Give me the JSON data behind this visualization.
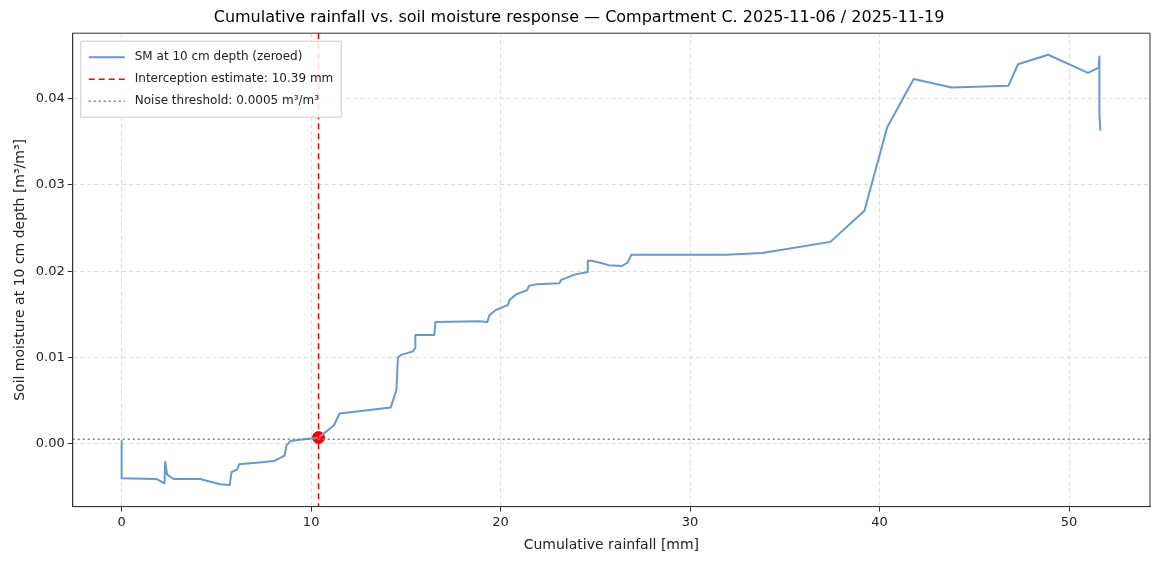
{
  "chart_data": {
    "type": "line",
    "title": "Cumulative rainfall vs. soil moisture response — Compartment C. 2025-11-06 / 2025-11-19",
    "xlabel": "Cumulative rainfall [mm]",
    "ylabel": "Soil moisture at 10 cm depth [m³/m³]",
    "series": [
      {
        "name": "SM at 10 cm depth (zeroed)",
        "color": "#6699cc",
        "x": [
          0,
          0,
          1.86,
          2.26,
          2.3,
          2.4,
          2.74,
          4.14,
          5.2,
          5.7,
          5.8,
          6.1,
          6.2,
          8.05,
          8.6,
          8.7,
          8.9,
          10.39,
          11.2,
          11.5,
          14.2,
          14.5,
          14.58,
          14.75,
          15.37,
          15.5,
          15.5,
          16.5,
          16.56,
          18.87,
          19.3,
          19.4,
          19.75,
          20.4,
          20.45,
          20.8,
          21.4,
          21.5,
          21.9,
          23.1,
          23.2,
          23.9,
          24.6,
          24.6,
          24.8,
          25.2,
          25.7,
          26.4,
          26.7,
          26.9,
          30.1,
          31.9,
          33.8,
          37.4,
          39.2,
          40.4,
          41.8,
          43.8,
          46.8,
          47.3,
          48.9,
          51.0,
          51.56,
          51.6,
          51.6,
          51.65
        ],
        "values": [
          0.0003,
          -0.004,
          -0.0041,
          -0.0046,
          -0.0021,
          -0.0036,
          -0.0041,
          -0.0041,
          -0.0047,
          -0.0048,
          -0.0033,
          -0.003,
          -0.0024,
          -0.002,
          -0.0014,
          -0.0002,
          0.0003,
          0.0007,
          0.0021,
          0.0035,
          0.0042,
          0.0062,
          0.01,
          0.0103,
          0.0107,
          0.0111,
          0.0126,
          0.0126,
          0.0141,
          0.0142,
          0.0141,
          0.0149,
          0.0155,
          0.0161,
          0.0166,
          0.0173,
          0.0178,
          0.0183,
          0.0185,
          0.0186,
          0.019,
          0.0196,
          0.0199,
          0.0212,
          0.0212,
          0.021,
          0.0207,
          0.0206,
          0.021,
          0.0219,
          0.0219,
          0.0219,
          0.0221,
          0.0234,
          0.027,
          0.0367,
          0.0423,
          0.0413,
          0.0415,
          0.044,
          0.0451,
          0.043,
          0.0436,
          0.0449,
          0.0382,
          0.0363
        ]
      },
      {
        "type": "scatter",
        "color": "#ff0000",
        "x": [
          10.39
        ],
        "values": [
          0.0007
        ]
      }
    ],
    "ref_lines": [
      {
        "axis": "x",
        "value": 10.39,
        "label": "Interception estimate: 10.39 mm",
        "color": "#ff0000",
        "line_style": "dashed"
      },
      {
        "axis": "y",
        "value": 0.0005,
        "label": "Noise threshold: 0.0005 m³/m³",
        "color": "#808080",
        "line_style": "dotted"
      }
    ],
    "xlim": [
      -2.58,
      54.27
    ],
    "xticks": [
      0,
      10,
      20,
      30,
      40,
      50
    ],
    "ylim": [
      -0.0073,
      0.0476
    ],
    "yticks": [
      {
        "value": 0,
        "label": "0.00"
      },
      {
        "value": 0.01,
        "label": "0.01"
      },
      {
        "value": 0.02,
        "label": "0.02"
      },
      {
        "value": 0.03,
        "label": "0.03"
      },
      {
        "value": 0.04,
        "label": "0.04"
      }
    ],
    "grid": true,
    "legend": "top left"
  }
}
